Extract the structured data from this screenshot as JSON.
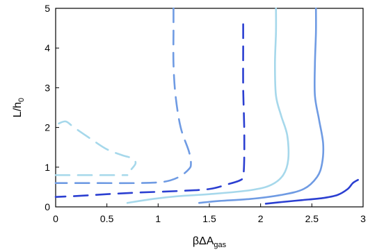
{
  "chart_data": {
    "type": "line",
    "title": "",
    "xlabel": {
      "main": "βΔA",
      "sub": "gas"
    },
    "ylabel": {
      "main": "L/h",
      "sub": "0"
    },
    "xlim": [
      0,
      3
    ],
    "ylim": [
      0,
      5
    ],
    "xticks": [
      "0",
      "0.5",
      "1",
      "1.5",
      "2",
      "2.5",
      "3"
    ],
    "yticks": [
      "0",
      "1",
      "2",
      "3",
      "4",
      "5"
    ],
    "grid": false,
    "legend": "none",
    "series": [
      {
        "color": "#a6d8eb",
        "style": "dashed",
        "points": [
          [
            0.03,
            2.1
          ],
          [
            0.1,
            2.15
          ],
          [
            0.18,
            2.0
          ],
          [
            0.35,
            1.7
          ],
          [
            0.5,
            1.45
          ],
          [
            0.65,
            1.3
          ],
          [
            0.75,
            1.22
          ],
          [
            0.78,
            1.1
          ],
          [
            0.74,
            0.95
          ]
        ]
      },
      {
        "color": "#a6d8eb",
        "style": "dashed",
        "points": [
          [
            0.0,
            0.8
          ],
          [
            0.1,
            0.8
          ],
          [
            0.4,
            0.8
          ],
          [
            0.6,
            0.8
          ],
          [
            0.7,
            0.8
          ]
        ]
      },
      {
        "color": "#6f9be3",
        "style": "dashed",
        "points": [
          [
            1.15,
            5.0
          ],
          [
            1.15,
            4.4
          ],
          [
            1.15,
            3.6
          ],
          [
            1.17,
            2.8
          ],
          [
            1.22,
            2.0
          ],
          [
            1.3,
            1.4
          ],
          [
            1.32,
            1.1
          ],
          [
            1.3,
            0.95
          ],
          [
            1.2,
            0.75
          ],
          [
            1.05,
            0.63
          ],
          [
            0.8,
            0.6
          ],
          [
            0.4,
            0.6
          ],
          [
            0.0,
            0.6
          ]
        ]
      },
      {
        "color": "#2b3fd1",
        "style": "dashed",
        "points": [
          [
            1.83,
            4.6
          ],
          [
            1.83,
            4.0
          ],
          [
            1.83,
            3.0
          ],
          [
            1.84,
            2.0
          ],
          [
            1.84,
            1.2
          ],
          [
            1.83,
            0.78
          ],
          [
            1.8,
            0.67
          ],
          [
            1.68,
            0.57
          ],
          [
            1.5,
            0.45
          ],
          [
            1.2,
            0.4
          ],
          [
            0.8,
            0.36
          ],
          [
            0.5,
            0.32
          ],
          [
            0.25,
            0.28
          ],
          [
            0.0,
            0.25
          ]
        ]
      },
      {
        "color": "#a6d8eb",
        "style": "solid",
        "points": [
          [
            2.15,
            5.0
          ],
          [
            2.15,
            4.4
          ],
          [
            2.14,
            3.6
          ],
          [
            2.15,
            2.8
          ],
          [
            2.2,
            2.3
          ],
          [
            2.26,
            1.8
          ],
          [
            2.27,
            1.2
          ],
          [
            2.22,
            0.8
          ],
          [
            2.1,
            0.55
          ],
          [
            1.9,
            0.42
          ],
          [
            1.5,
            0.32
          ],
          [
            1.2,
            0.27
          ],
          [
            0.95,
            0.2
          ],
          [
            0.7,
            0.1
          ]
        ]
      },
      {
        "color": "#6f9be3",
        "style": "solid",
        "points": [
          [
            2.54,
            5.0
          ],
          [
            2.54,
            4.4
          ],
          [
            2.53,
            3.6
          ],
          [
            2.53,
            2.8
          ],
          [
            2.57,
            2.2
          ],
          [
            2.61,
            1.6
          ],
          [
            2.6,
            1.1
          ],
          [
            2.55,
            0.75
          ],
          [
            2.42,
            0.45
          ],
          [
            2.2,
            0.3
          ],
          [
            1.9,
            0.2
          ],
          [
            1.6,
            0.15
          ],
          [
            1.4,
            0.1
          ]
        ]
      },
      {
        "color": "#2b3fd1",
        "style": "solid",
        "points": [
          [
            2.95,
            0.68
          ],
          [
            2.9,
            0.6
          ],
          [
            2.85,
            0.45
          ],
          [
            2.75,
            0.3
          ],
          [
            2.6,
            0.22
          ],
          [
            2.4,
            0.17
          ],
          [
            2.2,
            0.12
          ],
          [
            2.05,
            0.08
          ]
        ]
      }
    ]
  }
}
